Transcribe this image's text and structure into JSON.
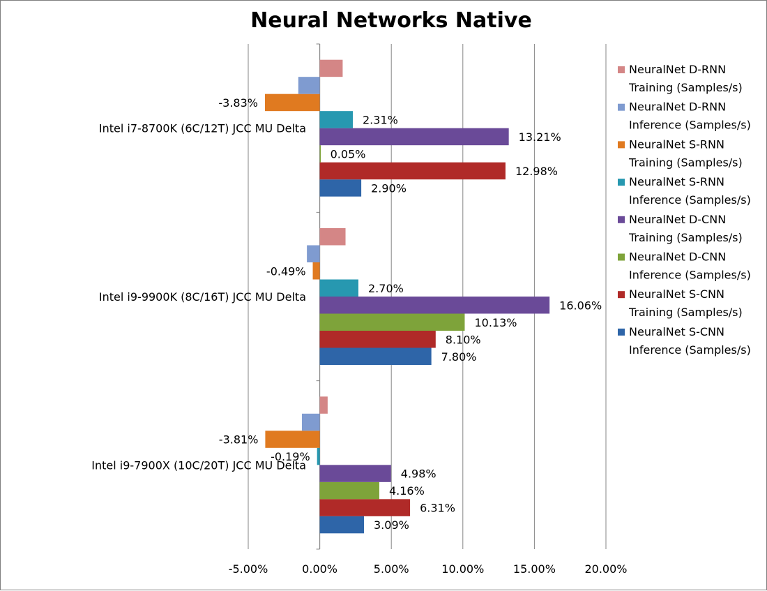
{
  "chart_data": {
    "type": "bar",
    "orientation": "horizontal",
    "title": "Neural Networks Native",
    "xlabel": "",
    "ylabel": "",
    "xlim": [
      -0.05,
      0.2
    ],
    "x_ticks": [
      "-5.00%",
      "0.00%",
      "5.00%",
      "10.00%",
      "15.00%",
      "20.00%"
    ],
    "grid": true,
    "legend_position": "right",
    "categories": [
      "Intel i7-8700K (6C/12T) JCC MU Delta",
      "Intel i9-9900K (8C/16T) JCC MU Delta",
      "Intel i9-7900X (10C/20T) JCC MU Delta"
    ],
    "series": [
      {
        "name": "NeuralNet S-CNN Inference (Samples/s)",
        "color": "#2e65a8",
        "values": [
          0.029,
          0.078,
          0.0309
        ],
        "labels": [
          "2.90%",
          "7.80%",
          "3.09%"
        ]
      },
      {
        "name": "NeuralNet S-CNN Training (Samples/s)",
        "color": "#b02a28",
        "values": [
          0.1298,
          0.081,
          0.0631
        ],
        "labels": [
          "12.98%",
          "8.10%",
          "6.31%"
        ]
      },
      {
        "name": "NeuralNet D-CNN Inference (Samples/s)",
        "color": "#7ea33a",
        "values": [
          0.0005,
          0.1013,
          0.0416
        ],
        "labels": [
          "0.05%",
          "10.13%",
          "4.16%"
        ]
      },
      {
        "name": "NeuralNet D-CNN Training (Samples/s)",
        "color": "#6a4a98",
        "values": [
          0.1321,
          0.1606,
          0.0498
        ],
        "labels": [
          "13.21%",
          "16.06%",
          "4.98%"
        ]
      },
      {
        "name": "NeuralNet S-RNN Inference (Samples/s)",
        "color": "#2798b0",
        "values": [
          0.0231,
          0.027,
          -0.0019
        ],
        "labels": [
          "2.31%",
          "2.70%",
          "-0.19%"
        ]
      },
      {
        "name": "NeuralNet S-RNN Training (Samples/s)",
        "color": "#e07a20",
        "values": [
          -0.0383,
          -0.0049,
          -0.0381
        ],
        "labels": [
          "-3.83%",
          "-0.49%",
          "-3.81%"
        ]
      },
      {
        "name": "NeuralNet D-RNN Inference (Samples/s)",
        "color": "#7f9bd0",
        "values": [
          -0.015,
          -0.009,
          -0.0125
        ],
        "labels": [
          "",
          "",
          ""
        ]
      },
      {
        "name": "NeuralNet D-RNN Training (Samples/s)",
        "color": "#d48686",
        "values": [
          0.016,
          0.018,
          0.0055
        ],
        "labels": [
          "",
          "",
          ""
        ]
      }
    ],
    "legend_order": [
      [
        "NeuralNet D-RNN",
        "Training (Samples/s)"
      ],
      [
        "NeuralNet D-RNN",
        "Inference (Samples/s)"
      ],
      [
        "NeuralNet S-RNN",
        "Training (Samples/s)"
      ],
      [
        "NeuralNet S-RNN",
        "Inference (Samples/s)"
      ],
      [
        "NeuralNet D-CNN",
        "Training (Samples/s)"
      ],
      [
        "NeuralNet D-CNN",
        "Inference (Samples/s)"
      ],
      [
        "NeuralNet S-CNN",
        "Training (Samples/s)"
      ],
      [
        "NeuralNet S-CNN",
        "Inference (Samples/s)"
      ]
    ]
  }
}
